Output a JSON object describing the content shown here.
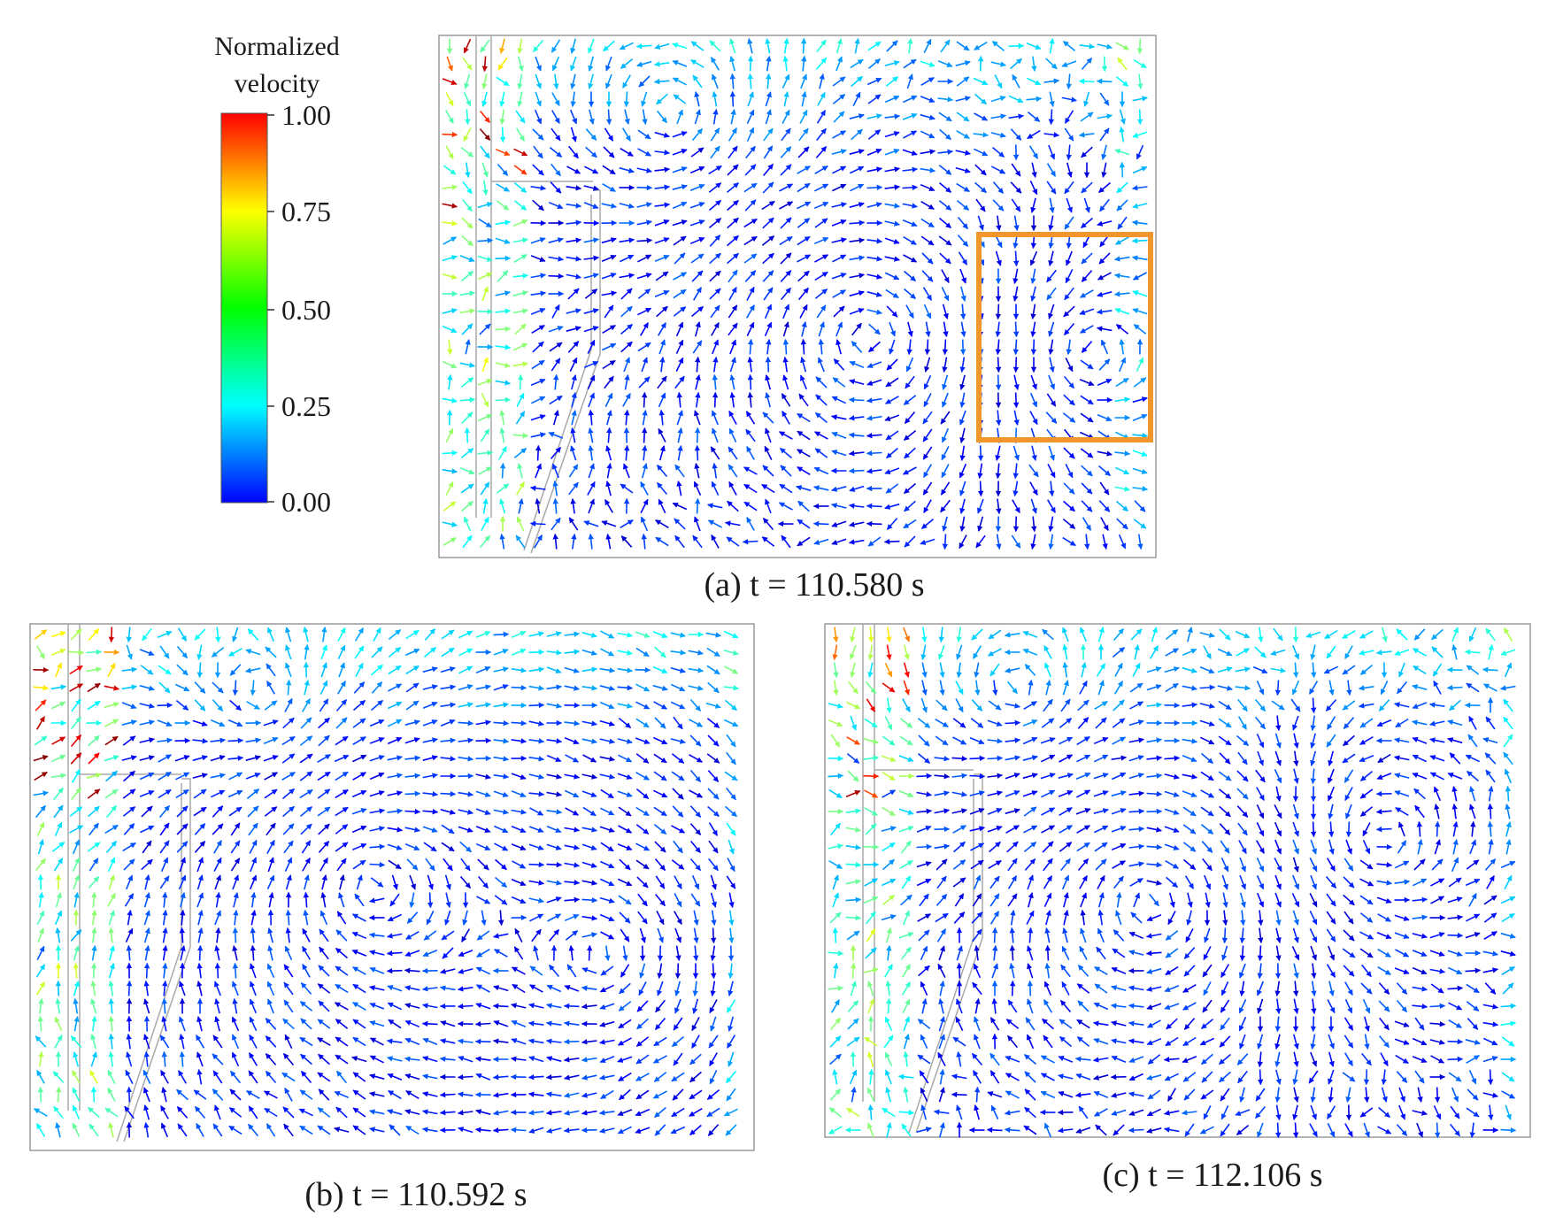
{
  "legend": {
    "title_line1": "Normalized",
    "title_line2": "velocity",
    "ticks": [
      "1.00",
      "0.75",
      "0.50",
      "0.25",
      "0.00"
    ],
    "colors": [
      "#0000ff",
      "#00ffff",
      "#00ff00",
      "#ffff00",
      "#ff0000"
    ]
  },
  "panels": [
    {
      "id": "a",
      "caption": "(a) t = 110.580 s",
      "highlight_box": true,
      "highlight_color": "#f0962d"
    },
    {
      "id": "b",
      "caption": "(b) t = 110.592 s",
      "highlight_box": false
    },
    {
      "id": "c",
      "caption": "(c) t = 112.106 s",
      "highlight_box": false
    }
  ]
}
